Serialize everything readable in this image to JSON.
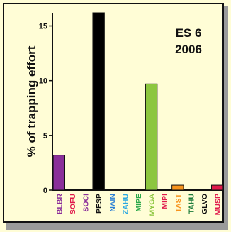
{
  "chart_data": {
    "type": "bar",
    "ylabel": "% of trapping effort",
    "annotation": [
      "ES 6",
      "2006"
    ],
    "ylim": [
      0,
      16
    ],
    "yticks": [
      "0",
      "5",
      "10",
      "15"
    ],
    "ytick_values": [
      0,
      5,
      10,
      15
    ],
    "categories": [
      "BLBR",
      "SOFU",
      "SOCI",
      "PESP",
      "NAIN",
      "ZAHU",
      "MIPE",
      "MYGA",
      "MIPI",
      "TAST",
      "TAHU",
      "GLVO",
      "MUSP"
    ],
    "values": [
      3.2,
      0,
      0,
      16.2,
      0,
      0,
      0,
      9.7,
      0,
      0.45,
      0,
      0,
      0.45
    ],
    "bar_colors": [
      "#8a2f9a",
      "#8a2f9a",
      "#8a2f9a",
      "#000000",
      "#000000",
      "#000000",
      "#000000",
      "#8cc63f",
      "#8cc63f",
      "#f7941d",
      "#f7941d",
      "#f7941d",
      "#e0194b"
    ],
    "label_colors": [
      "#8a2f9a",
      "#e0194b",
      "#8a2f9a",
      "#111111",
      "#2a7fd4",
      "#2aa8e0",
      "#2aa84a",
      "#8cc63f",
      "#e0194b",
      "#f7941d",
      "#1b7a3a",
      "#111111",
      "#e0194b"
    ],
    "grid": false
  }
}
